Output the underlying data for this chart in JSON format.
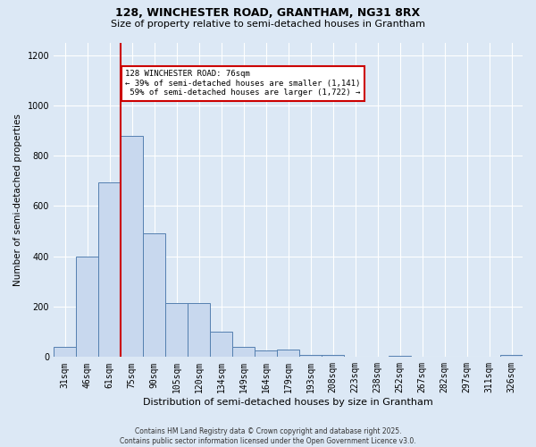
{
  "title1": "128, WINCHESTER ROAD, GRANTHAM, NG31 8RX",
  "title2": "Size of property relative to semi-detached houses in Grantham",
  "xlabel": "Distribution of semi-detached houses by size in Grantham",
  "ylabel": "Number of semi-detached properties",
  "footnote": "Contains HM Land Registry data © Crown copyright and database right 2025.\nContains public sector information licensed under the Open Government Licence v3.0.",
  "bin_labels": [
    "31sqm",
    "46sqm",
    "61sqm",
    "75sqm",
    "90sqm",
    "105sqm",
    "120sqm",
    "134sqm",
    "149sqm",
    "164sqm",
    "179sqm",
    "193sqm",
    "208sqm",
    "223sqm",
    "238sqm",
    "252sqm",
    "267sqm",
    "282sqm",
    "297sqm",
    "311sqm",
    "326sqm"
  ],
  "bar_values": [
    40,
    400,
    695,
    880,
    490,
    215,
    215,
    100,
    40,
    25,
    28,
    10,
    10,
    0,
    0,
    5,
    0,
    0,
    0,
    0,
    10
  ],
  "bar_color": "#c8d8ee",
  "bar_edge_color": "#5580b0",
  "property_label": "128 WINCHESTER ROAD: 76sqm",
  "pct_smaller": 39,
  "pct_larger": 59,
  "n_smaller": 1141,
  "n_larger": 1722,
  "vline_x_index": 3,
  "vline_color": "#cc0000",
  "annotation_box_color": "#cc0000",
  "ylim": [
    0,
    1250
  ],
  "yticks": [
    0,
    200,
    400,
    600,
    800,
    1000,
    1200
  ],
  "bg_color": "#dce8f5",
  "grid_color": "#ffffff",
  "title1_fontsize": 9,
  "title2_fontsize": 8,
  "xlabel_fontsize": 8,
  "ylabel_fontsize": 7.5,
  "tick_fontsize": 7,
  "annot_fontsize": 6.5,
  "footnote_fontsize": 5.5
}
